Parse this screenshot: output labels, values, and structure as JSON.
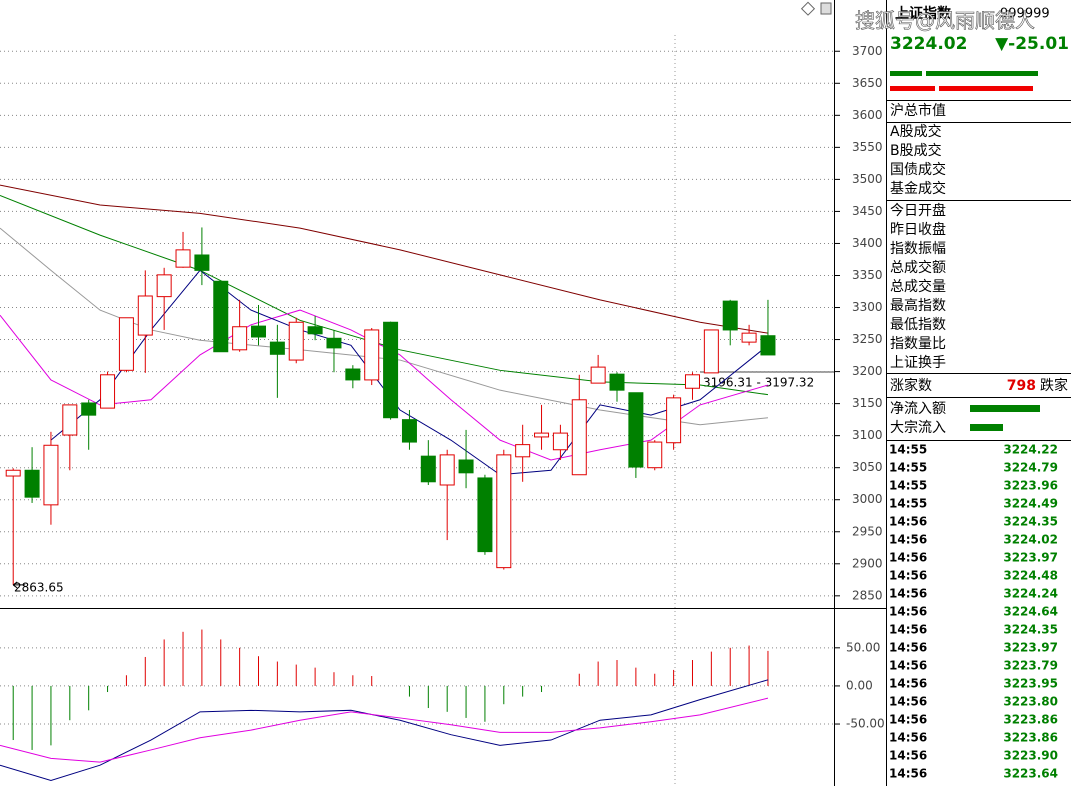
{
  "chart_data": [
    {
      "type": "candlestick",
      "open": [
        3037,
        3046,
        2992,
        3101,
        3151,
        3143,
        3202,
        3257,
        3317,
        3363,
        3382,
        3341,
        3234,
        3271,
        3246,
        3218,
        3270,
        3252,
        3204,
        3187,
        3277,
        3125,
        3068,
        3023,
        3062,
        3034,
        2894,
        3067,
        3098,
        3078,
        3039,
        3182,
        3196,
        3167,
        3050,
        3089,
        3174,
        3198,
        3310,
        3246,
        3256
      ],
      "high": [
        3049,
        3082,
        3106,
        3148,
        3156,
        3200,
        3284,
        3358,
        3362,
        3418,
        3425,
        3341,
        3312,
        3304,
        3273,
        3284,
        3287,
        3265,
        3210,
        3268,
        3278,
        3140,
        3093,
        3078,
        3109,
        3039,
        3078,
        3117,
        3148,
        3117,
        3195,
        3226,
        3199,
        3167,
        3093,
        3164,
        3199,
        3265,
        3312,
        3273,
        3312
      ],
      "low": [
        2867,
        2995,
        2961,
        3046,
        3078,
        3143,
        3199,
        3198,
        3265,
        3362,
        3335,
        3231,
        3231,
        3241,
        3159,
        3213,
        3249,
        3199,
        3174,
        3179,
        3125,
        3078,
        3023,
        2937,
        3018,
        2914,
        2891,
        3028,
        3078,
        3062,
        3039,
        3182,
        3153,
        3034,
        3046,
        3078,
        3156,
        3198,
        3241,
        3241,
        3226
      ],
      "close": [
        3046,
        3004,
        3085,
        3148,
        3132,
        3195,
        3284,
        3318,
        3351,
        3390,
        3358,
        3231,
        3270,
        3254,
        3227,
        3277,
        3259,
        3237,
        3187,
        3265,
        3128,
        3090,
        3028,
        3070,
        3042,
        2919,
        3070,
        3086,
        3104,
        3104,
        3156,
        3207,
        3171,
        3051,
        3090,
        3159,
        3195,
        3265,
        3265,
        3260,
        3226
      ],
      "up_color": "#e00000",
      "down_color": "#008000",
      "series": [
        {
          "color": "#800000",
          "x": [
            -0.7,
            4.6,
            9.9,
            15.2,
            20.5,
            25.8,
            31.1,
            36.4,
            40
          ],
          "values": [
            3491,
            3460,
            3447,
            3424,
            3390,
            3351,
            3312,
            3277,
            3260
          ]
        },
        {
          "color": "#008000",
          "x": [
            -0.7,
            4.6,
            9.9,
            15.2,
            20.5,
            25.8,
            31.1,
            36.4,
            40
          ],
          "values": [
            3475,
            3413,
            3358,
            3280,
            3234,
            3202,
            3184,
            3179,
            3164
          ]
        },
        {
          "color": "#999999",
          "x": [
            -0.7,
            2,
            4.6,
            7.3,
            9.9,
            15.2,
            20.5,
            25.8,
            31.1,
            36.4,
            40
          ],
          "values": [
            3424,
            3358,
            3296,
            3265,
            3249,
            3234,
            3218,
            3171,
            3140,
            3117,
            3128
          ]
        },
        {
          "color": "#e000e0",
          "x": [
            -0.7,
            2,
            4.6,
            7.3,
            9.9,
            12.6,
            15.2,
            17.9,
            20.5,
            23.2,
            25.8,
            28.5,
            31.1,
            33.8,
            36.4,
            40
          ],
          "values": [
            3288,
            3187,
            3148,
            3156,
            3226,
            3273,
            3296,
            3265,
            3226,
            3156,
            3093,
            3062,
            3078,
            3093,
            3148,
            3179
          ]
        },
        {
          "color": "#000080",
          "x": [
            2,
            4.6,
            7.3,
            9.9,
            12.6,
            15.2,
            17.9,
            20.5,
            23.2,
            25.8,
            28.5,
            31.1,
            33.8,
            36.4,
            40
          ],
          "values": [
            3093,
            3156,
            3265,
            3358,
            3296,
            3265,
            3241,
            3140,
            3093,
            3039,
            3046,
            3148,
            3132,
            3156,
            3241
          ]
        }
      ],
      "xlim": [
        -0.7,
        43.5
      ],
      "ylim": [
        2831,
        3780
      ],
      "yticks": [
        2850,
        2900,
        2950,
        3000,
        3050,
        3100,
        3150,
        3200,
        3250,
        3300,
        3350,
        3400,
        3450,
        3500,
        3550,
        3600,
        3650,
        3700
      ],
      "grid": true,
      "annotations": [
        "2863.65",
        "3196.31 - 3197.32"
      ]
    },
    {
      "type": "macd",
      "values": [
        -71,
        -84,
        -78,
        -45,
        -32,
        -8,
        14,
        38,
        61,
        71,
        74,
        61,
        50,
        39,
        32,
        28,
        24,
        18,
        14,
        13,
        0,
        -14,
        -29,
        -34,
        -42,
        -47,
        -24,
        -14,
        -8,
        0,
        16,
        32,
        34,
        24,
        16,
        21,
        34,
        45,
        50,
        53,
        46
      ],
      "up_color": "#e00000",
      "down_color": "#008000",
      "series": [
        {
          "color": "#000080",
          "x": [
            -0.7,
            2,
            4.6,
            7.3,
            9.9,
            12.6,
            15.2,
            17.9,
            20.5,
            23.2,
            25.8,
            28.5,
            31.1,
            33.8,
            36.4,
            40
          ],
          "values": [
            -104,
            -124,
            -104,
            -71,
            -34,
            -32,
            -34,
            -32,
            -45,
            -64,
            -78,
            -71,
            -45,
            -38,
            -18,
            8
          ]
        },
        {
          "color": "#e000e0",
          "x": [
            -0.7,
            2,
            4.6,
            7.3,
            9.9,
            12.6,
            15.2,
            17.9,
            20.5,
            23.2,
            25.8,
            28.5,
            31.1,
            33.8,
            36.4,
            40
          ],
          "values": [
            -78,
            -95,
            -100,
            -84,
            -68,
            -58,
            -45,
            -34,
            -42,
            -51,
            -61,
            -61,
            -55,
            -47,
            -38,
            -16
          ]
        }
      ],
      "xlim": [
        -0.7,
        43.5
      ],
      "ylim": [
        -130,
        97
      ],
      "yticks": [
        {
          "value": 50,
          "label": "50.00"
        },
        {
          "value": 0,
          "label": "0.00"
        },
        {
          "value": -50,
          "label": "-50.00"
        }
      ],
      "grid": true
    }
  ],
  "panel": {
    "watermark": "搜狐号@风雨顺德人",
    "title": "上证指数",
    "code": "999999",
    "price": "3224.02",
    "change": "▼-25.01",
    "fields": [
      "沪总市值",
      "A股成交",
      "B股成交",
      "国债成交",
      "基金成交",
      "今日开盘",
      "昨日收盘",
      "指数振幅",
      "总成交额",
      "总成交量",
      "最高指数",
      "最低指数",
      "指数量比",
      "上证换手"
    ],
    "breadth": {
      "label": "涨家数",
      "value": "798",
      "label2": "跌家"
    },
    "flows": [
      "净流入额",
      "大宗流入"
    ],
    "ticks": [
      [
        "14:55",
        "3224.22"
      ],
      [
        "14:55",
        "3224.79"
      ],
      [
        "14:55",
        "3223.96"
      ],
      [
        "14:55",
        "3224.49"
      ],
      [
        "14:56",
        "3224.35"
      ],
      [
        "14:56",
        "3224.02"
      ],
      [
        "14:56",
        "3223.97"
      ],
      [
        "14:56",
        "3224.48"
      ],
      [
        "14:56",
        "3224.24"
      ],
      [
        "14:56",
        "3224.64"
      ],
      [
        "14:56",
        "3224.35"
      ],
      [
        "14:56",
        "3223.97"
      ],
      [
        "14:56",
        "3223.79"
      ],
      [
        "14:56",
        "3223.95"
      ],
      [
        "14:56",
        "3223.80"
      ],
      [
        "14:56",
        "3223.86"
      ],
      [
        "14:56",
        "3223.86"
      ],
      [
        "14:56",
        "3223.90"
      ],
      [
        "14:56",
        "3223.64"
      ]
    ]
  }
}
